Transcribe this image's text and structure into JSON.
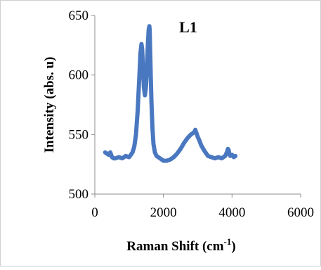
{
  "chart_data": {
    "type": "line",
    "title": "L1",
    "xlabel": "Raman Shift (cm",
    "xlabel_sup": "-1",
    "xlabel_close": ")",
    "ylabel": "Intensity (abs. u)",
    "xlim": [
      0,
      6000
    ],
    "ylim": [
      500,
      650
    ],
    "x_ticks": [
      0,
      2000,
      4000,
      6000
    ],
    "x_tick_labels": [
      "0",
      "2000",
      "4000",
      "6000"
    ],
    "y_ticks": [
      500,
      550,
      600,
      650
    ],
    "y_tick_labels": [
      "500",
      "550",
      "600",
      "650"
    ],
    "grid": false,
    "legend": "none",
    "series_color": "#4a78c0",
    "series": [
      {
        "x": [
          300,
          350,
          400,
          450,
          500,
          550,
          600,
          700,
          800,
          900,
          1000,
          1050,
          1100,
          1150,
          1200,
          1250,
          1300,
          1330,
          1360,
          1380,
          1400,
          1430,
          1460,
          1490,
          1510,
          1530,
          1550,
          1570,
          1590,
          1600,
          1610,
          1630,
          1650,
          1680,
          1710,
          1750,
          1800,
          1900,
          2000,
          2100,
          2200,
          2300,
          2400,
          2500,
          2600,
          2700,
          2800,
          2850,
          2900,
          2930,
          2950,
          2980,
          3000,
          3050,
          3100,
          3200,
          3300,
          3400,
          3500,
          3600,
          3700,
          3800,
          3850,
          3880,
          3900,
          3920,
          3950,
          4000,
          4050,
          4100
        ],
        "y": [
          535,
          534,
          533,
          535,
          531,
          530,
          530,
          531,
          530,
          532,
          531,
          533,
          535,
          540,
          550,
          570,
          600,
          618,
          626,
          622,
          608,
          590,
          583,
          590,
          600,
          615,
          628,
          638,
          641,
          638,
          625,
          600,
          578,
          556,
          542,
          535,
          532,
          530,
          528,
          528,
          529,
          531,
          534,
          538,
          543,
          547,
          550,
          551,
          552,
          554,
          552,
          550,
          548,
          545,
          541,
          536,
          532,
          531,
          530,
          531,
          530,
          532,
          535,
          538,
          537,
          534,
          532,
          533,
          531,
          532
        ]
      }
    ]
  }
}
